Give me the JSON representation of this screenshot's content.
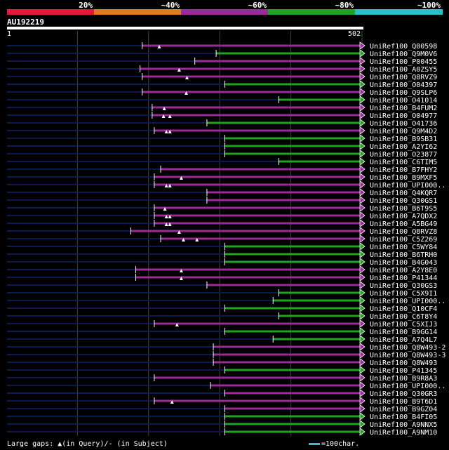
{
  "query": {
    "name": "AU192219",
    "start_label": "1",
    "end_label": "502",
    "length": 502
  },
  "legend": {
    "segments": [
      {
        "label": "20%",
        "color": "#e8173a"
      },
      {
        "label": "~40%",
        "color": "#e07a1f"
      },
      {
        "label": "~60%",
        "color": "#9b2a9b"
      },
      {
        "label": "~80%",
        "color": "#21a321"
      },
      {
        "label": "~100%",
        "color": "#29c0c8"
      }
    ]
  },
  "colors": {
    "background": "#000000",
    "unaligned": "#0d1a50",
    "grid": "#444444",
    "purple": "#9b2a9b",
    "green": "#21a321"
  },
  "footer": {
    "gaps_text": "Large gaps: ▲(in Query)/- (in Subject)",
    "scale_text": "=100char."
  },
  "hits": [
    {
      "name": "UniRef100_Q00598",
      "start": 191,
      "color": "purple",
      "tri": [
        215
      ]
    },
    {
      "name": "UniRef100_Q9M0V6",
      "start": 295,
      "color": "green",
      "tri": []
    },
    {
      "name": "UniRef100_P00455",
      "start": 265,
      "color": "purple",
      "tri": []
    },
    {
      "name": "UniRef100_A0ZSY5",
      "start": 188,
      "color": "purple",
      "tri": [
        243
      ]
    },
    {
      "name": "UniRef100_Q8RVZ9",
      "start": 191,
      "color": "purple",
      "tri": [
        254
      ]
    },
    {
      "name": "UniRef100_O04397",
      "start": 307,
      "color": "green",
      "tri": []
    },
    {
      "name": "UniRef100_Q9SLP6",
      "start": 191,
      "color": "purple",
      "tri": [
        253
      ]
    },
    {
      "name": "UniRef100_O41014",
      "start": 383,
      "color": "green",
      "tri": []
    },
    {
      "name": "UniRef100_B4FUM2",
      "start": 205,
      "color": "purple",
      "tri": [
        222
      ]
    },
    {
      "name": "UniRef100_O04977",
      "start": 205,
      "color": "purple",
      "tri": [
        221,
        230
      ]
    },
    {
      "name": "UniRef100_O41736",
      "start": 282,
      "color": "green",
      "tri": []
    },
    {
      "name": "UniRef100_Q9M4D2",
      "start": 208,
      "color": "purple",
      "tri": [
        225,
        230
      ]
    },
    {
      "name": "UniRef100_B9SB31",
      "start": 307,
      "color": "green",
      "tri": []
    },
    {
      "name": "UniRef100_A2YI62",
      "start": 307,
      "color": "green",
      "tri": []
    },
    {
      "name": "UniRef100_O23877",
      "start": 307,
      "color": "green",
      "tri": []
    },
    {
      "name": "UniRef100_C6TIM5",
      "start": 383,
      "color": "green",
      "tri": []
    },
    {
      "name": "UniRef100_B7FHY2",
      "start": 217,
      "color": "purple",
      "tri": []
    },
    {
      "name": "UniRef100_B9MXF5",
      "start": 208,
      "color": "purple",
      "tri": [
        246
      ]
    },
    {
      "name": "UniRef100_UPI000..",
      "start": 208,
      "color": "purple",
      "tri": [
        225,
        230
      ]
    },
    {
      "name": "UniRef100_Q4KQR7",
      "start": 282,
      "color": "purple",
      "tri": []
    },
    {
      "name": "UniRef100_Q30GS1",
      "start": 282,
      "color": "purple",
      "tri": []
    },
    {
      "name": "UniRef100_B6T9S5",
      "start": 208,
      "color": "purple",
      "tri": [
        223
      ]
    },
    {
      "name": "UniRef100_A7QDX2",
      "start": 208,
      "color": "purple",
      "tri": [
        225,
        230
      ]
    },
    {
      "name": "UniRef100_A5BG49",
      "start": 208,
      "color": "purple",
      "tri": [
        225,
        230
      ]
    },
    {
      "name": "UniRef100_Q8RVZ8",
      "start": 175,
      "color": "purple",
      "tri": [
        243
      ]
    },
    {
      "name": "UniRef100_C5Z269",
      "start": 217,
      "color": "purple",
      "tri": [
        249,
        268
      ]
    },
    {
      "name": "UniRef100_C5WY84",
      "start": 307,
      "color": "green",
      "tri": []
    },
    {
      "name": "UniRef100_B6TRH0",
      "start": 307,
      "color": "green",
      "tri": []
    },
    {
      "name": "UniRef100_B4G043",
      "start": 307,
      "color": "green",
      "tri": []
    },
    {
      "name": "UniRef100_A2Y8E0",
      "start": 182,
      "color": "purple",
      "tri": [
        246
      ]
    },
    {
      "name": "UniRef100_P41344",
      "start": 182,
      "color": "purple",
      "tri": [
        246
      ]
    },
    {
      "name": "UniRef100_Q30GS3",
      "start": 282,
      "color": "purple",
      "tri": []
    },
    {
      "name": "UniRef100_C5X9I1",
      "start": 383,
      "color": "green",
      "tri": []
    },
    {
      "name": "UniRef100_UPI000..",
      "start": 375,
      "color": "green",
      "tri": []
    },
    {
      "name": "UniRef100_Q10CF4",
      "start": 307,
      "color": "green",
      "tri": []
    },
    {
      "name": "UniRef100_C6T8Y4",
      "start": 383,
      "color": "green",
      "tri": []
    },
    {
      "name": "UniRef100_C5XIJ3",
      "start": 208,
      "color": "purple",
      "tri": [
        240
      ]
    },
    {
      "name": "UniRef100_B9GG14",
      "start": 307,
      "color": "green",
      "tri": []
    },
    {
      "name": "UniRef100_A7Q4L7",
      "start": 375,
      "color": "green",
      "tri": []
    },
    {
      "name": "UniRef100_Q8W493-2",
      "start": 291,
      "color": "purple",
      "tri": []
    },
    {
      "name": "UniRef100_Q8W493-3",
      "start": 291,
      "color": "purple",
      "tri": []
    },
    {
      "name": "UniRef100_Q8W493",
      "start": 291,
      "color": "purple",
      "tri": []
    },
    {
      "name": "UniRef100_P41345",
      "start": 307,
      "color": "green",
      "tri": []
    },
    {
      "name": "UniRef100_B9R8A3",
      "start": 208,
      "color": "purple",
      "tri": []
    },
    {
      "name": "UniRef100_UPI000..",
      "start": 287,
      "color": "purple",
      "tri": []
    },
    {
      "name": "UniRef100_Q30GR3",
      "start": 307,
      "color": "purple",
      "tri": []
    },
    {
      "name": "UniRef100_B9T6D1",
      "start": 208,
      "color": "purple",
      "tri": [
        233
      ]
    },
    {
      "name": "UniRef100_B9GZ04",
      "start": 307,
      "color": "purple",
      "tri": []
    },
    {
      "name": "UniRef100_B4FI05",
      "start": 307,
      "color": "green",
      "tri": []
    },
    {
      "name": "UniRef100_A9NNX5",
      "start": 307,
      "color": "green",
      "tri": []
    },
    {
      "name": "UniRef100_A9NM10",
      "start": 307,
      "color": "green",
      "tri": []
    }
  ]
}
